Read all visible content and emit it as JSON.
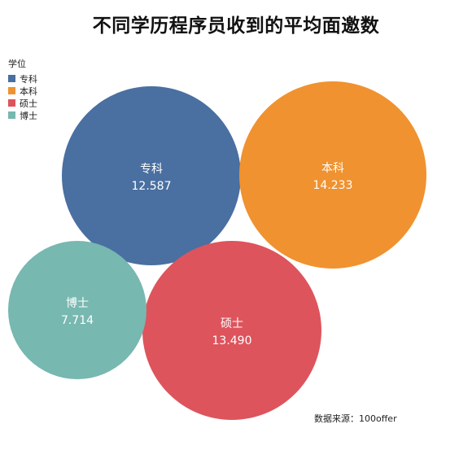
{
  "chart_data": {
    "type": "bubble",
    "title": "不同学历程序员收到的平均面邀数",
    "legend_title": "学位",
    "legend_position": "top-left",
    "series": [
      {
        "name": "专科",
        "value": 12.587,
        "value_label": "12.587",
        "color": "#4a6fa1"
      },
      {
        "name": "本科",
        "value": 14.233,
        "value_label": "14.233",
        "color": "#f0922f"
      },
      {
        "name": "硕士",
        "value": 13.49,
        "value_label": "13.490",
        "color": "#de545c"
      },
      {
        "name": "博士",
        "value": 7.714,
        "value_label": "7.714",
        "color": "#77b8b0"
      }
    ]
  },
  "source": "数据来源：100offer"
}
